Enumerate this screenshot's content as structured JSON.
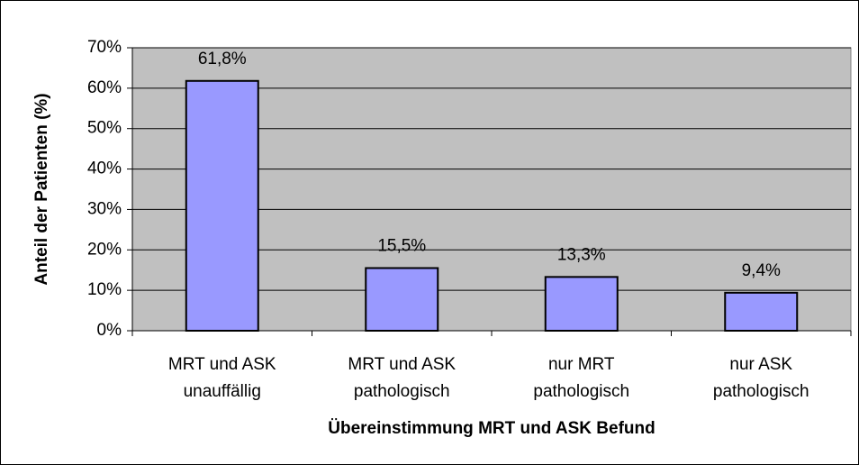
{
  "chart_data": {
    "type": "bar",
    "categories": [
      [
        "MRT und ASK",
        "unauffällig"
      ],
      [
        "MRT und ASK",
        "pathologisch"
      ],
      [
        "nur MRT",
        "pathologisch"
      ],
      [
        "nur ASK",
        "pathologisch"
      ]
    ],
    "values": [
      61.8,
      15.5,
      13.3,
      9.4
    ],
    "value_labels": [
      "61,8%",
      "15,5%",
      "13,3%",
      "9,4%"
    ],
    "color": "#9999ff",
    "ylim": [
      0,
      70
    ],
    "yticks": [
      {
        "value": 0,
        "label": "0%"
      },
      {
        "value": 10,
        "label": "10%"
      },
      {
        "value": 20,
        "label": "20%"
      },
      {
        "value": 30,
        "label": "30%"
      },
      {
        "value": 40,
        "label": "40%"
      },
      {
        "value": 50,
        "label": "50%"
      },
      {
        "value": 60,
        "label": "60%"
      },
      {
        "value": 70,
        "label": "70%"
      }
    ],
    "grid": true,
    "x_label": "Übereinstimmung MRT und ASK Befund",
    "y_label": "Anteil der Patienten (%)"
  }
}
